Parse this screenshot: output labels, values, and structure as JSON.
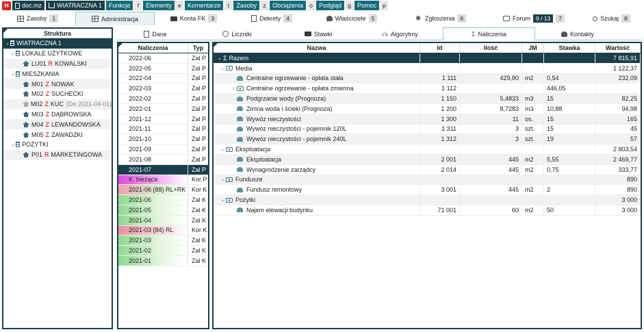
{
  "topbar": {
    "logo": "H",
    "doc": "doc.mz",
    "building": "WIATRACZNA 1",
    "menus": [
      {
        "label": "Funkcje",
        "key": "f"
      },
      {
        "label": "Elementy",
        "key": "e"
      },
      {
        "label": "Komentarze",
        "key": "t"
      },
      {
        "label": "Zasoby",
        "key": "z"
      },
      {
        "label": "Obciążenia",
        "key": "o"
      },
      {
        "label": "Podgląd",
        "key": "g"
      },
      {
        "label": "Pomoc",
        "key": "p"
      }
    ]
  },
  "tabs": [
    {
      "label": "Zasoby",
      "badge": "1"
    },
    {
      "label": "Administracja",
      "badge": ""
    },
    {
      "label": "Konta FK",
      "badge": "3"
    },
    {
      "label": "Dekrety",
      "badge": "4"
    },
    {
      "label": "Właściciele",
      "badge": "5"
    },
    {
      "label": "Zgłoszenia",
      "badge": "6"
    },
    {
      "label": "Forum",
      "badge_dark": "9 / 13",
      "badge": "7"
    },
    {
      "label": "Szukaj",
      "badge": "8"
    }
  ],
  "structure": {
    "title": "Struktura",
    "items": [
      {
        "label": "WIATRACZNA 1"
      },
      {
        "label": "LOKALE UŻYTKOWE"
      },
      {
        "code": "LU01",
        "type": "R",
        "name": "KOWALSKI"
      },
      {
        "label": "MIESZKANIA"
      },
      {
        "code": "M01",
        "type": "Z",
        "name": "NOWAK"
      },
      {
        "code": "M02",
        "type": "Z",
        "name": "SUCHECKI"
      },
      {
        "code": "M02",
        "type": "Z",
        "name": "KUC",
        "note": "(Do 2021-04-01)"
      },
      {
        "code": "M03",
        "type": "Z",
        "name": "DĄBROWSKA"
      },
      {
        "code": "M04",
        "type": "Z",
        "name": "LEWANDOWSKA"
      },
      {
        "code": "M05",
        "type": "Z",
        "name": "ZAWADZKI"
      },
      {
        "label": "POŻYTKI"
      },
      {
        "code": "P01",
        "type": "R",
        "name": "MARKETINGOWA"
      }
    ]
  },
  "subtabs": [
    "Dane",
    "Liczniki",
    "Stawki",
    "Algorytmy",
    "Naliczenia",
    "Kontakty"
  ],
  "naliczenia": {
    "headers": [
      "Naliczenia",
      "Typ"
    ],
    "rows": [
      {
        "name": "2022-06",
        "typ": "Zal P"
      },
      {
        "name": "2022-05",
        "typ": "Zal P"
      },
      {
        "name": "2022-04",
        "typ": "Zal P"
      },
      {
        "name": "2022-03",
        "typ": "Zal P"
      },
      {
        "name": "2022-02",
        "typ": "Zal P"
      },
      {
        "name": "2022-01",
        "typ": "Zal P"
      },
      {
        "name": "2021-12",
        "typ": "Zal P"
      },
      {
        "name": "2021-11",
        "typ": "Zal P"
      },
      {
        "name": "2021-10",
        "typ": "Zal P"
      },
      {
        "name": "2021-09",
        "typ": "Zal P"
      },
      {
        "name": "2021-08",
        "typ": "Zal P"
      },
      {
        "name": "2021-07",
        "typ": "Zal P"
      },
      {
        "name": "K. bieżąca",
        "typ": "Kor P"
      },
      {
        "name": "2021-06 (88) RL+RK",
        "typ": "Kor K"
      },
      {
        "name": "2021-06",
        "typ": "Zal K"
      },
      {
        "name": "2021-05",
        "typ": "Zal K"
      },
      {
        "name": "2021-04",
        "typ": "Zal K"
      },
      {
        "name": "2021-03 (84) RL",
        "typ": "Kor K"
      },
      {
        "name": "2021-03",
        "typ": "Zal K"
      },
      {
        "name": "2021-02",
        "typ": "Zal K"
      },
      {
        "name": "2021-01",
        "typ": "Zal K"
      }
    ]
  },
  "grid": {
    "headers": [
      "Nazwa",
      "Id",
      "Ilość",
      "JM",
      "Stawka",
      "Wartość"
    ],
    "rows": [
      {
        "name": "Razem",
        "id": "",
        "ilosc": "",
        "jm": "",
        "stawka": "",
        "wartosc": "7 815,91"
      },
      {
        "name": "Media",
        "id": "",
        "ilosc": "",
        "jm": "",
        "stawka": "",
        "wartosc": "1 122,37"
      },
      {
        "name": "Centralne ogrzewanie - opłata stała",
        "id": "1 111",
        "ilosc": "429,80",
        "jm": "m2",
        "stawka": "0,54",
        "wartosc": "232,09"
      },
      {
        "name": "Centralne ogrzewanie - opłata zmienna",
        "id": "1 112",
        "ilosc": "",
        "jm": "",
        "stawka": "446,05",
        "wartosc": ""
      },
      {
        "name": "Podgrzanie wody (Prognoza)",
        "id": "1 150",
        "ilosc": "5,4833",
        "jm": "m3",
        "stawka": "15",
        "wartosc": "82,25"
      },
      {
        "name": "Zimna woda i ścieki (Prognoza)",
        "id": "1 200",
        "ilosc": "8,7283",
        "jm": "m3",
        "stawka": "10,88",
        "wartosc": "94,98"
      },
      {
        "name": "Wywóz nieczystości",
        "id": "1 300",
        "ilosc": "11",
        "jm": "os.",
        "stawka": "15",
        "wartosc": "165"
      },
      {
        "name": "Wywóz nieczystości - pojemnik 120L",
        "id": "1 311",
        "ilosc": "3",
        "jm": "szt.",
        "stawka": "15",
        "wartosc": "45"
      },
      {
        "name": "Wywóz nieczystości - pojemnik 240L",
        "id": "1 312",
        "ilosc": "3",
        "jm": "szt.",
        "stawka": "19",
        "wartosc": "57"
      },
      {
        "name": "Eksploatacja",
        "id": "",
        "ilosc": "",
        "jm": "",
        "stawka": "",
        "wartosc": "2 803,54"
      },
      {
        "name": "Eksploatacja",
        "id": "2 001",
        "ilosc": "445",
        "jm": "m2",
        "stawka": "5,55",
        "wartosc": "2 469,77"
      },
      {
        "name": "Wynagrodzenie zarządcy",
        "id": "2 014",
        "ilosc": "445",
        "jm": "m2",
        "stawka": "0,75",
        "wartosc": "333,77"
      },
      {
        "name": "Fundusze",
        "id": "",
        "ilosc": "",
        "jm": "",
        "stawka": "",
        "wartosc": "890"
      },
      {
        "name": "Fundusz remontowy",
        "id": "3 001",
        "ilosc": "445",
        "jm": "m2",
        "stawka": "2",
        "wartosc": "890"
      },
      {
        "name": "Pożytki",
        "id": "",
        "ilosc": "",
        "jm": "",
        "stawka": "",
        "wartosc": "3 000"
      },
      {
        "name": "Najem elewacji budynku",
        "id": "71 001",
        "ilosc": "60",
        "jm": "m2",
        "stawka": "50",
        "wartosc": "3 000"
      }
    ]
  }
}
